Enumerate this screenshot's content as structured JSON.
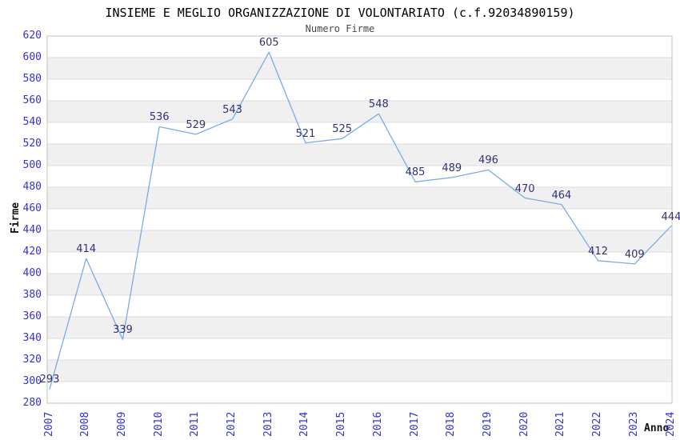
{
  "chart_data": {
    "type": "line",
    "title": "INSIEME E MEGLIO ORGANIZZAZIONE DI VOLONTARIATO (c.f.92034890159)",
    "subtitle": "Numero Firme",
    "xlabel": "Anno",
    "ylabel": "Firme",
    "x": [
      "2007",
      "2008",
      "2009",
      "2010",
      "2011",
      "2012",
      "2013",
      "2014",
      "2015",
      "2016",
      "2017",
      "2018",
      "2019",
      "2020",
      "2021",
      "2022",
      "2023",
      "2024"
    ],
    "values": [
      293,
      414,
      339,
      536,
      529,
      543,
      605,
      521,
      525,
      548,
      485,
      489,
      496,
      470,
      464,
      412,
      409,
      444
    ],
    "ylim": [
      280,
      620
    ],
    "ytick_step": 20,
    "legend": "none",
    "grid": "horizontal gridlines with alternating horizontal shaded bands",
    "data_labels": "value shown above each point",
    "colors": {
      "line": "#79ace4",
      "tick_label": "#3232cd",
      "data_label": "#333372",
      "band": "#f0f0f0",
      "gridline": "#dcdcdc",
      "border": "#c0c0c0",
      "title": "#000000",
      "subtitle": "#4a4a4a"
    }
  }
}
